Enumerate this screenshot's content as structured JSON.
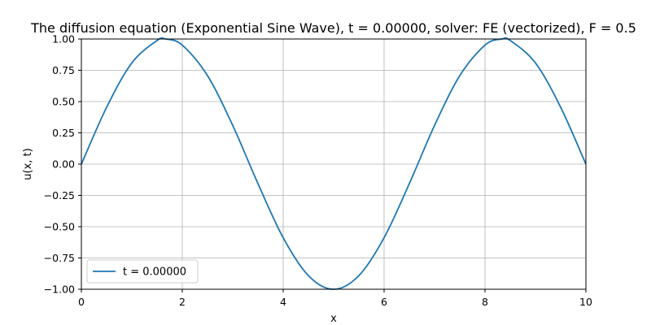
{
  "chart_data": {
    "type": "line",
    "title": "The diffusion equation (Exponential Sine Wave), t = 0.00000, solver: FE (vectorized), F = 0.5",
    "xlabel": "x",
    "ylabel": "u(x, t)",
    "xlim": [
      0,
      10
    ],
    "ylim": [
      -1.0,
      1.0
    ],
    "xticks": [
      0,
      2,
      4,
      6,
      8,
      10
    ],
    "xtick_labels": [
      "0",
      "2",
      "4",
      "6",
      "8",
      "10"
    ],
    "yticks": [
      -1.0,
      -0.75,
      -0.5,
      -0.25,
      0.0,
      0.25,
      0.5,
      0.75,
      1.0
    ],
    "ytick_labels": [
      "−1.00",
      "−0.75",
      "−0.50",
      "−0.25",
      "0.00",
      "0.25",
      "0.50",
      "0.75",
      "1.00"
    ],
    "grid": true,
    "legend_position": "lower-left",
    "series": [
      {
        "name": "t = 0.00000",
        "color": "#1f77b4",
        "x": [
          0.0,
          0.5,
          1.0,
          1.5,
          1.667,
          2.0,
          2.5,
          3.0,
          3.5,
          4.0,
          4.5,
          5.0,
          5.5,
          6.0,
          6.5,
          7.0,
          7.5,
          8.0,
          8.333,
          8.5,
          9.0,
          9.5,
          10.0
        ],
        "y": [
          0.0,
          0.454,
          0.809,
          0.988,
          1.0,
          0.951,
          0.707,
          0.309,
          -0.156,
          -0.588,
          -0.891,
          -1.0,
          -0.891,
          -0.588,
          -0.156,
          0.309,
          0.707,
          0.951,
          1.0,
          0.988,
          0.809,
          0.454,
          0.0
        ]
      }
    ]
  }
}
